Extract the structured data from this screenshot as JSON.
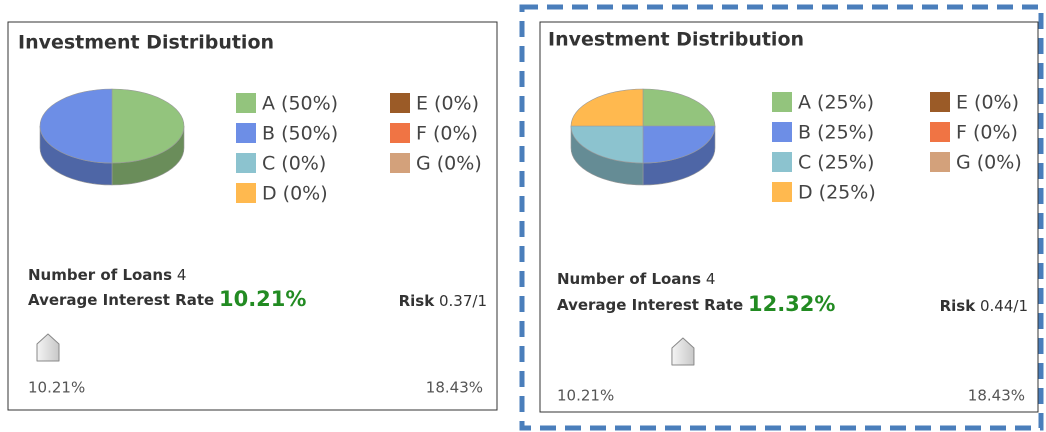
{
  "panels": [
    {
      "title": "Investment Distribution",
      "pie": {
        "type": "pie",
        "labels": [
          "A (50%)",
          "B (50%)",
          "C (0%)",
          "D (0%)",
          "E (0%)",
          "F (0%)",
          "G (0%)"
        ],
        "values": [
          50,
          50,
          0,
          0,
          0,
          0,
          0
        ],
        "colors": [
          "#93c47d",
          "#6d8ee6",
          "#8cc3cf",
          "#ffb94f",
          "#9b5b27",
          "#f07444",
          "#d3a17b"
        ]
      },
      "loans_label": "Number of Loans",
      "loans": 4,
      "rate_label": "Average Interest Rate",
      "rate": {
        "value": 10.21,
        "label": "10.21%"
      },
      "risk_label": "Risk",
      "risk": "0.37/1",
      "slider": {
        "min": {
          "value": 10.21,
          "label": "10.21%"
        },
        "max": {
          "value": 18.43,
          "label": "18.43%"
        }
      }
    },
    {
      "title": "Investment Distribution",
      "pie": {
        "type": "pie",
        "labels": [
          "A (25%)",
          "B (25%)",
          "C (25%)",
          "D (25%)",
          "E (0%)",
          "F (0%)",
          "G (0%)"
        ],
        "values": [
          25,
          25,
          25,
          25,
          0,
          0,
          0
        ],
        "colors": [
          "#93c47d",
          "#6d8ee6",
          "#8cc3cf",
          "#ffb94f",
          "#9b5b27",
          "#f07444",
          "#d3a17b"
        ]
      },
      "loans_label": "Number of Loans",
      "loans": 4,
      "rate_label": "Average Interest Rate",
      "rate": {
        "value": 12.32,
        "label": "12.32%"
      },
      "risk_label": "Risk",
      "risk": "0.44/1",
      "slider": {
        "min": {
          "value": 10.21,
          "label": "10.21%"
        },
        "max": {
          "value": 18.43,
          "label": "18.43%"
        }
      }
    }
  ]
}
